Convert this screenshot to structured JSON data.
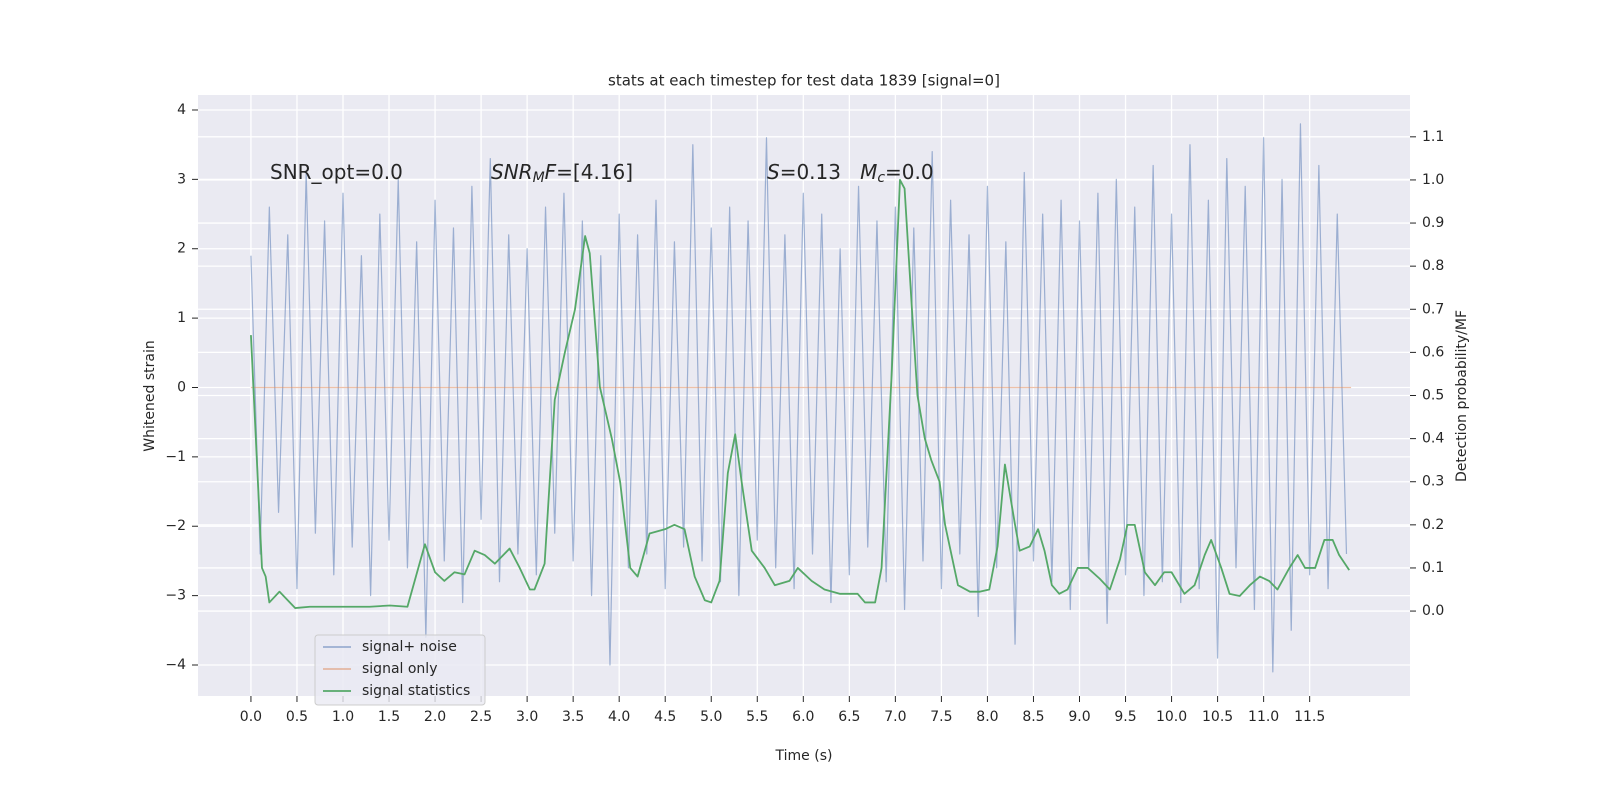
{
  "chart_data": {
    "type": "line",
    "title": "stats at each timestep for test data 1839 [signal=0]",
    "xlabel": "Time (s)",
    "ylabel": "Whitened strain",
    "y2label": "Detection probability/MF",
    "xlim": [
      -0.575,
      12.59
    ],
    "ylim": [
      -4.447,
      4.216
    ],
    "y2lim": [
      -0.197,
      1.197
    ],
    "xticks": [
      {
        "value": 0,
        "label": "0.0"
      },
      {
        "value": 0.5,
        "label": "0.5"
      },
      {
        "value": 1,
        "label": "1.0"
      },
      {
        "value": 1.5,
        "label": "1.5"
      },
      {
        "value": 2,
        "label": "2.0"
      },
      {
        "value": 2.5,
        "label": "2.5"
      },
      {
        "value": 3,
        "label": "3.0"
      },
      {
        "value": 3.5,
        "label": "3.5"
      },
      {
        "value": 4,
        "label": "4.0"
      },
      {
        "value": 4.5,
        "label": "4.5"
      },
      {
        "value": 5,
        "label": "5.0"
      },
      {
        "value": 5.5,
        "label": "5.5"
      },
      {
        "value": 6,
        "label": "6.0"
      },
      {
        "value": 6.5,
        "label": "6.5"
      },
      {
        "value": 7,
        "label": "7.0"
      },
      {
        "value": 7.5,
        "label": "7.5"
      },
      {
        "value": 8,
        "label": "8.0"
      },
      {
        "value": 8.5,
        "label": "8.5"
      },
      {
        "value": 9,
        "label": "9.0"
      },
      {
        "value": 9.5,
        "label": "9.5"
      },
      {
        "value": 10,
        "label": "10.0"
      },
      {
        "value": 10.5,
        "label": "10.5"
      },
      {
        "value": 11,
        "label": "11.0"
      },
      {
        "value": 11.5,
        "label": "11.5"
      }
    ],
    "yticks": [
      {
        "value": -4,
        "label": "−4"
      },
      {
        "value": -3,
        "label": "−3"
      },
      {
        "value": -2,
        "label": "−2"
      },
      {
        "value": -1,
        "label": "−1"
      },
      0,
      1,
      2,
      3,
      4
    ],
    "y2ticks": [
      {
        "value": 0,
        "label": "0.0"
      },
      {
        "value": 0.1,
        "label": "0.1"
      },
      {
        "value": 0.2,
        "label": "0.2"
      },
      {
        "value": 0.3,
        "label": "0.3"
      },
      {
        "value": 0.4,
        "label": "0.4"
      },
      {
        "value": 0.5,
        "label": "0.5"
      },
      {
        "value": 0.6,
        "label": "0.6"
      },
      {
        "value": 0.7,
        "label": "0.7"
      },
      {
        "value": 0.8,
        "label": "0.8"
      },
      {
        "value": 0.9,
        "label": "0.9"
      },
      {
        "value": 1,
        "label": "1.0"
      },
      {
        "value": 1.1,
        "label": "1.1"
      }
    ],
    "grid": true,
    "legend": "lower left",
    "annotations": [
      [
        {
          "text": "SNR_opt=0.0"
        }
      ],
      [
        {
          "text": "SNR",
          "italic": true
        },
        {
          "text": "M",
          "italic": true,
          "sub": true
        },
        {
          "text": "F",
          "italic": true
        },
        {
          "text": "=[4.16]"
        }
      ],
      [
        {
          "text": "S",
          "italic": true
        },
        {
          "text": "=0.13   "
        },
        {
          "text": "M",
          "italic": true
        },
        {
          "text": "c",
          "italic": true,
          "sub": true
        },
        {
          "text": "=0.0"
        }
      ]
    ],
    "series": [
      {
        "name": "signal+ noise",
        "color": "#4c72b0",
        "opacity": 0.5,
        "x": [
          0,
          0.1,
          0.2,
          0.3,
          0.4,
          0.5,
          0.6,
          0.7,
          0.8,
          0.9,
          1,
          1.1,
          1.2,
          1.3,
          1.4,
          1.5,
          1.6,
          1.7,
          1.8,
          1.9,
          2,
          2.1,
          2.2,
          2.3,
          2.4,
          2.5,
          2.6,
          2.7,
          2.8,
          2.9,
          3,
          3.1,
          3.2,
          3.3,
          3.4,
          3.5,
          3.6,
          3.7,
          3.8,
          3.9,
          4,
          4.1,
          4.2,
          4.3,
          4.4,
          4.5,
          4.6,
          4.7,
          4.8,
          4.9,
          5,
          5.1,
          5.2,
          5.3,
          5.4,
          5.5,
          5.6,
          5.7,
          5.8,
          5.9,
          6,
          6.1,
          6.2,
          6.3,
          6.4,
          6.5,
          6.6,
          6.7,
          6.8,
          6.9,
          7,
          7.1,
          7.2,
          7.3,
          7.4,
          7.5,
          7.6,
          7.7,
          7.8,
          7.9,
          8,
          8.1,
          8.2,
          8.3,
          8.4,
          8.5,
          8.6,
          8.7,
          8.8,
          8.9,
          9,
          9.1,
          9.2,
          9.3,
          9.4,
          9.5,
          9.6,
          9.7,
          9.8,
          9.9,
          10,
          10.1,
          10.2,
          10.3,
          10.4,
          10.5,
          10.6,
          10.7,
          10.8,
          10.9,
          11,
          11.1,
          11.2,
          11.3,
          11.4,
          11.5,
          11.6,
          11.7,
          11.8,
          11.9
        ],
        "values": [
          1.9,
          -2.4,
          2.6,
          -1.8,
          2.2,
          -2.9,
          3.1,
          -2.1,
          2.4,
          -2.7,
          2.8,
          -2.3,
          1.9,
          -3.0,
          2.5,
          -2.2,
          3.0,
          -2.6,
          2.1,
          -3.6,
          2.7,
          -2.5,
          2.3,
          -3.1,
          2.9,
          -1.9,
          3.3,
          -2.8,
          2.2,
          -2.4,
          2.0,
          -2.7,
          2.6,
          -2.1,
          2.8,
          -2.5,
          2.4,
          -3.0,
          1.9,
          -4.0,
          2.5,
          -2.6,
          2.2,
          -2.4,
          2.7,
          -2.9,
          2.1,
          -2.3,
          3.5,
          -2.5,
          2.3,
          -2.8,
          2.6,
          -3.0,
          2.4,
          -2.2,
          3.6,
          -2.6,
          2.2,
          -2.9,
          2.8,
          -2.4,
          2.5,
          -3.1,
          2.0,
          -2.7,
          2.9,
          -2.3,
          2.4,
          -2.8,
          2.6,
          -3.2,
          2.3,
          -2.5,
          3.4,
          -2.9,
          2.7,
          -2.4,
          2.2,
          -3.3,
          2.9,
          -2.6,
          2.1,
          -3.7,
          3.1,
          -2.5,
          2.5,
          -2.8,
          2.7,
          -3.2,
          2.4,
          -2.6,
          2.8,
          -3.4,
          3.0,
          -2.7,
          2.6,
          -3.0,
          3.2,
          -2.8,
          2.5,
          -3.1,
          3.5,
          -2.9,
          2.7,
          -3.9,
          3.3,
          -2.6,
          2.9,
          -3.2,
          3.6,
          -4.1,
          3.0,
          -3.5,
          3.8,
          -2.7,
          3.2,
          -2.9,
          2.5,
          -2.4
        ]
      },
      {
        "name": "signal only",
        "color": "#dd8452",
        "opacity": 0.5,
        "x": [
          0,
          11.95
        ],
        "values": [
          0,
          0
        ]
      },
      {
        "name": "signal statistics",
        "color": "#55a868",
        "opacity": 1,
        "axis": "y2",
        "x": [
          0,
          0.12,
          0.16,
          0.2,
          0.31,
          0.48,
          0.64,
          0.97,
          1.29,
          1.51,
          1.7,
          1.89,
          2.0,
          2.1,
          2.21,
          2.32,
          2.43,
          2.54,
          2.65,
          2.81,
          2.92,
          3.03,
          3.08,
          3.19,
          3.3,
          3.41,
          3.52,
          3.63,
          3.68,
          3.79,
          3.92,
          4.01,
          4.12,
          4.2,
          4.33,
          4.5,
          4.6,
          4.71,
          4.82,
          4.93,
          5.0,
          5.09,
          5.18,
          5.26,
          5.33,
          5.44,
          5.58,
          5.69,
          5.85,
          5.94,
          6.09,
          6.23,
          6.4,
          6.5,
          6.59,
          6.67,
          6.78,
          6.85,
          6.96,
          7.05,
          7.1,
          7.18,
          7.24,
          7.32,
          7.39,
          7.48,
          7.54,
          7.68,
          7.81,
          7.92,
          8.02,
          8.11,
          8.19,
          8.3,
          8.35,
          8.46,
          8.55,
          8.62,
          8.7,
          8.78,
          8.87,
          8.98,
          9.09,
          9.22,
          9.33,
          9.44,
          9.52,
          9.6,
          9.71,
          9.82,
          9.92,
          10.0,
          10.14,
          10.25,
          10.36,
          10.43,
          10.54,
          10.63,
          10.74,
          10.85,
          10.96,
          11.06,
          11.15,
          11.28,
          11.37,
          11.45,
          11.56,
          11.66,
          11.75,
          11.82,
          11.93
        ],
        "values": [
          0.64,
          0.1,
          0.08,
          0.02,
          0.045,
          0.007,
          0.01,
          0.01,
          0.01,
          0.013,
          0.01,
          0.155,
          0.09,
          0.07,
          0.09,
          0.085,
          0.14,
          0.13,
          0.11,
          0.145,
          0.1,
          0.05,
          0.05,
          0.11,
          0.49,
          0.6,
          0.7,
          0.87,
          0.83,
          0.52,
          0.4,
          0.3,
          0.1,
          0.08,
          0.18,
          0.19,
          0.2,
          0.19,
          0.08,
          0.025,
          0.02,
          0.07,
          0.32,
          0.41,
          0.3,
          0.14,
          0.1,
          0.06,
          0.07,
          0.1,
          0.07,
          0.05,
          0.04,
          0.04,
          0.04,
          0.02,
          0.02,
          0.1,
          0.55,
          1.0,
          0.98,
          0.7,
          0.5,
          0.4,
          0.35,
          0.3,
          0.2,
          0.06,
          0.045,
          0.045,
          0.05,
          0.15,
          0.34,
          0.2,
          0.14,
          0.15,
          0.19,
          0.14,
          0.06,
          0.04,
          0.05,
          0.1,
          0.1,
          0.075,
          0.05,
          0.12,
          0.2,
          0.2,
          0.09,
          0.06,
          0.09,
          0.09,
          0.04,
          0.06,
          0.13,
          0.165,
          0.1,
          0.04,
          0.035,
          0.06,
          0.08,
          0.07,
          0.05,
          0.1,
          0.13,
          0.1,
          0.1,
          0.165,
          0.165,
          0.13,
          0.095
        ]
      }
    ]
  }
}
